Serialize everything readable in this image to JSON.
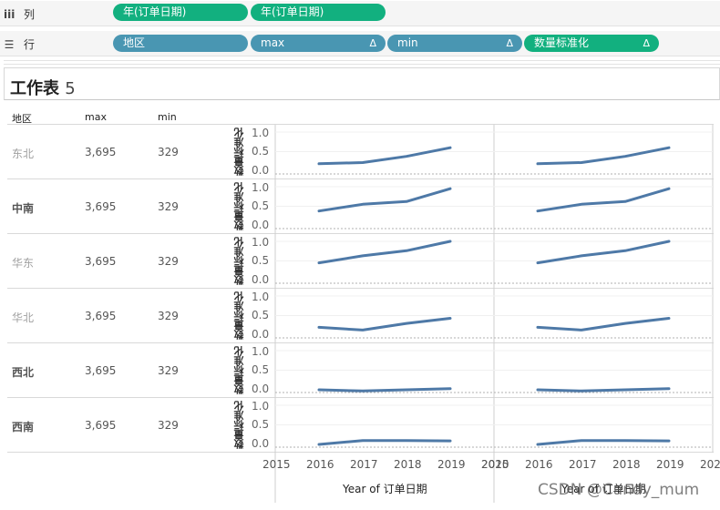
{
  "shelves": {
    "columns": {
      "icon": "columns-icon",
      "icon_glyph": "iii",
      "label": "列",
      "pills": [
        "年(订单日期)",
        "年(订单日期)"
      ]
    },
    "rows": {
      "icon": "list-icon",
      "icon_glyph": "☰",
      "label": "行",
      "pills": [
        {
          "label": "地区",
          "delta": ""
        },
        {
          "label": "max",
          "delta": "Δ"
        },
        {
          "label": "min",
          "delta": "Δ"
        },
        {
          "label": "数量标准化",
          "delta": "Δ"
        }
      ]
    }
  },
  "worksheet": {
    "title": "工作表",
    "title_number": "5"
  },
  "table": {
    "headers": {
      "region": "地区",
      "max": "max",
      "min": "min"
    },
    "y_axis_label": "数量标准化",
    "y_ticks": [
      "1.0",
      "0.5",
      "0.0"
    ],
    "rows": [
      {
        "region": "东北",
        "max": "3,695",
        "min": "329"
      },
      {
        "region": "中南",
        "max": "3,695",
        "min": "329"
      },
      {
        "region": "华东",
        "max": "3,695",
        "min": "329"
      },
      {
        "region": "华北",
        "max": "3,695",
        "min": "329"
      },
      {
        "region": "西北",
        "max": "3,695",
        "min": "329"
      },
      {
        "region": "西南",
        "max": "3,695",
        "min": "329"
      }
    ],
    "x_ticks": [
      "2015",
      "2016",
      "2017",
      "2018",
      "2019",
      "2020"
    ],
    "x_title": "Year of 订单日期"
  },
  "chart_data": {
    "type": "line",
    "x": [
      2016,
      2017,
      2018,
      2019
    ],
    "xlim": [
      2015,
      2020
    ],
    "ylim": [
      0,
      1
    ],
    "ylabel": "数量标准化",
    "xlabel": "Year of 订单日期",
    "line_color": "#4e79a7",
    "series": [
      {
        "name": "东北",
        "values": [
          0.19,
          0.22,
          0.38,
          0.6
        ]
      },
      {
        "name": "中南",
        "values": [
          0.38,
          0.55,
          0.62,
          0.95
        ]
      },
      {
        "name": "华东",
        "values": [
          0.45,
          0.63,
          0.76,
          1.0
        ]
      },
      {
        "name": "华北",
        "values": [
          0.2,
          0.13,
          0.3,
          0.43
        ]
      },
      {
        "name": "西北",
        "values": [
          0.0,
          -0.03,
          0.0,
          0.03
        ]
      },
      {
        "name": "西南",
        "values": [
          0.0,
          0.1,
          0.1,
          0.09
        ]
      }
    ]
  },
  "watermark": "CSDN @Candy_mum"
}
